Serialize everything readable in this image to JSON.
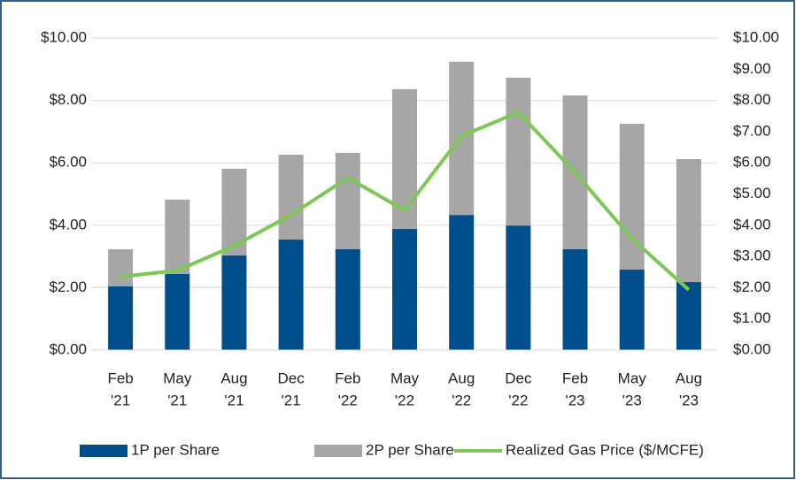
{
  "chart_data": {
    "type": "bar",
    "categories": [
      [
        "Feb",
        "'21"
      ],
      [
        "May",
        "'21"
      ],
      [
        "Aug",
        "'21"
      ],
      [
        "Dec",
        "'21"
      ],
      [
        "Feb",
        "'22"
      ],
      [
        "May",
        "'22"
      ],
      [
        "Aug",
        "'22"
      ],
      [
        "Dec",
        "'22"
      ],
      [
        "Feb",
        "'23"
      ],
      [
        "May",
        "'23"
      ],
      [
        "Aug",
        "'23"
      ]
    ],
    "series": [
      {
        "name": "1P per Share",
        "color": "#004f8c",
        "values": [
          2.04,
          2.44,
          3.03,
          3.54,
          3.23,
          3.88,
          4.33,
          3.99,
          3.23,
          2.58,
          2.18
        ]
      },
      {
        "name": "2P per Share",
        "color": "#a6a6a6",
        "values": [
          1.19,
          2.38,
          2.78,
          2.72,
          3.09,
          4.48,
          4.91,
          4.74,
          4.93,
          4.67,
          3.94
        ]
      },
      {
        "name": "Realized Gas Price ($/MCFE)",
        "color": "#7dc855",
        "type": "line",
        "axis": "y2",
        "values": [
          2.35,
          2.55,
          3.34,
          4.33,
          5.52,
          4.48,
          6.86,
          7.62,
          5.69,
          3.57,
          1.93
        ]
      }
    ],
    "ylim": [
      0,
      10
    ],
    "yticks": [
      {
        "value": 0,
        "label": "$0.00"
      },
      {
        "value": 2,
        "label": "$2.00"
      },
      {
        "value": 4,
        "label": "$4.00"
      },
      {
        "value": 6,
        "label": "$6.00"
      },
      {
        "value": 8,
        "label": "$8.00"
      },
      {
        "value": 10,
        "label": "$10.00"
      }
    ],
    "y2lim": [
      0,
      10
    ],
    "y2ticks": [
      {
        "value": 0,
        "label": "$0.00"
      },
      {
        "value": 1,
        "label": "$1.00"
      },
      {
        "value": 2,
        "label": "$2.00"
      },
      {
        "value": 3,
        "label": "$3.00"
      },
      {
        "value": 4,
        "label": "$4.00"
      },
      {
        "value": 5,
        "label": "$5.00"
      },
      {
        "value": 6,
        "label": "$6.00"
      },
      {
        "value": 7,
        "label": "$7.00"
      },
      {
        "value": 8,
        "label": "$8.00"
      },
      {
        "value": 9,
        "label": "$9.00"
      },
      {
        "value": 10,
        "label": "$10.00"
      }
    ],
    "grid": true,
    "legend": "bottom",
    "stacked": true
  }
}
